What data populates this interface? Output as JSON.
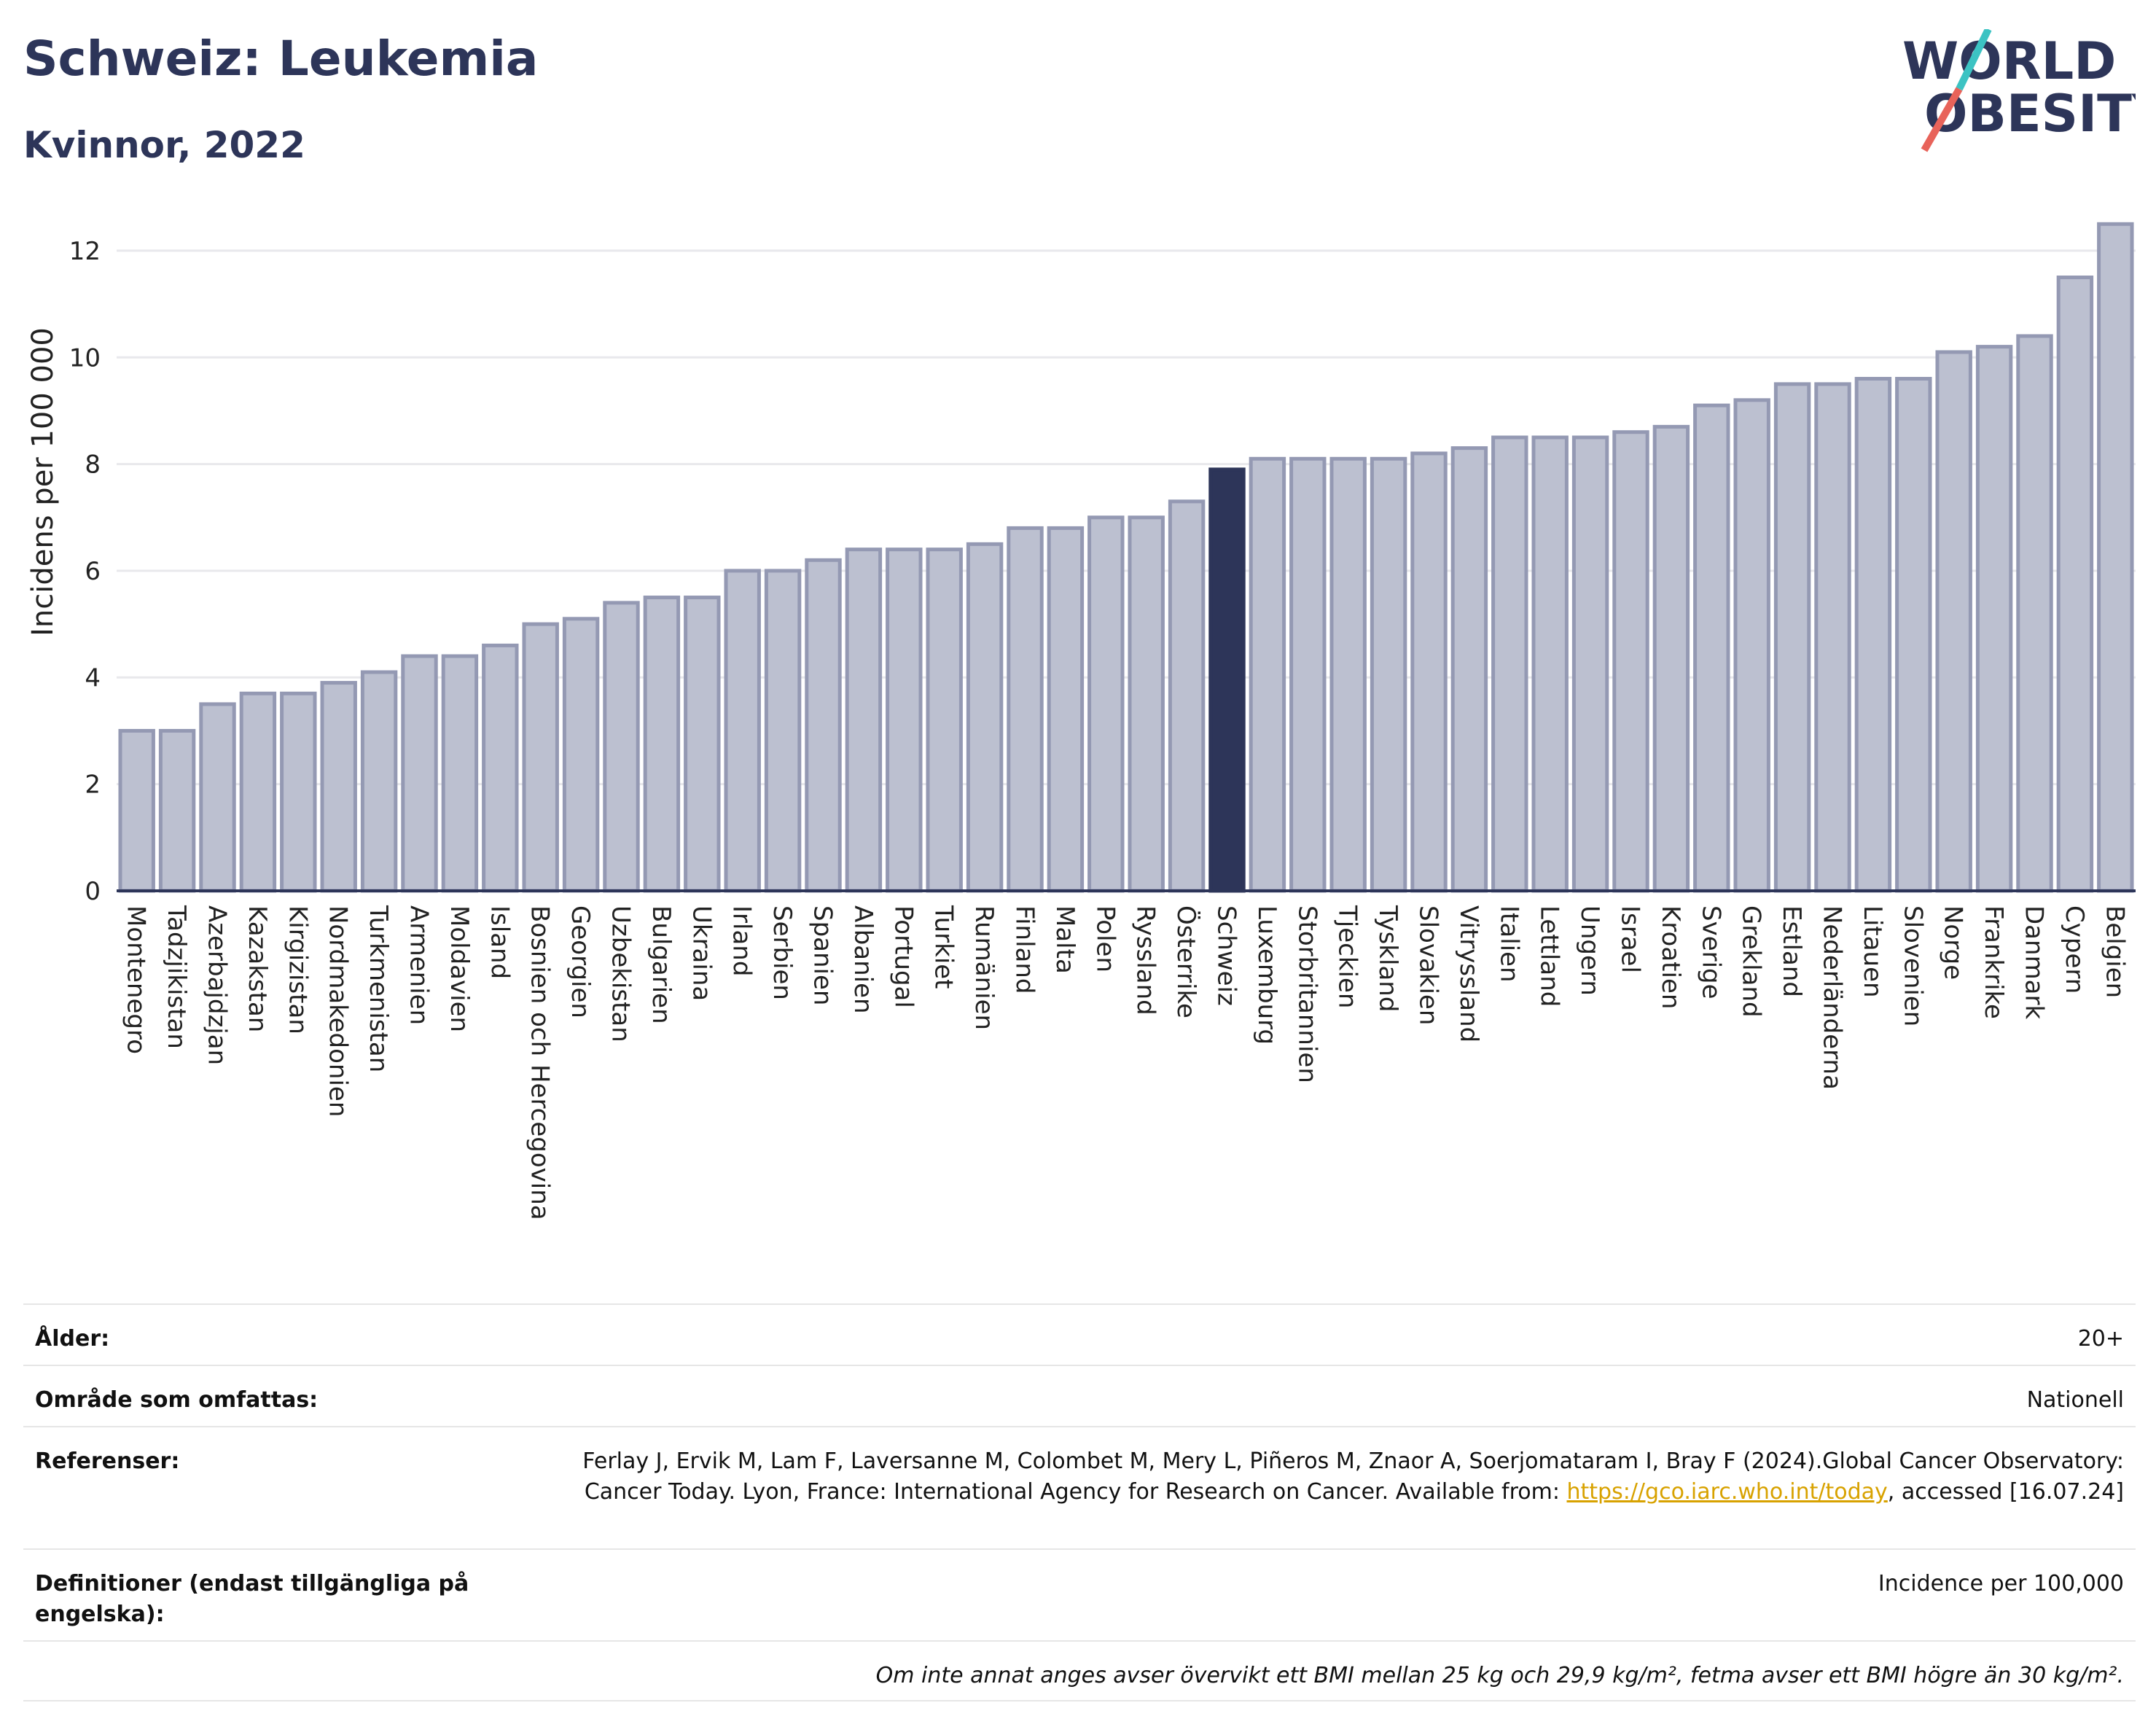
{
  "header": {
    "title": "Schweiz: Leukemia",
    "subtitle": "Kvinnor, 2022"
  },
  "logo": {
    "line1": "WORLD",
    "line2": "OBESITY",
    "accent_teal": "#3cc3c3",
    "accent_red": "#e8635a",
    "text_color": "#2d3559"
  },
  "chart_data": {
    "type": "bar",
    "ylabel": "Incidens per 100 000",
    "ylim": [
      0,
      12.6
    ],
    "yticks": [
      0,
      2,
      4,
      6,
      8,
      10,
      12
    ],
    "grid": true,
    "highlight": "Schweiz",
    "colors": {
      "bar": "#bcc0d0",
      "bar_edge": "#9499b3",
      "highlight": "#2d3559"
    },
    "categories": [
      "Montenegro",
      "Tadzjikistan",
      "Azerbajdzjan",
      "Kazakstan",
      "Kirgizistan",
      "Nordmakedonien",
      "Turkmenistan",
      "Armenien",
      "Moldavien",
      "Island",
      "Bosnien och Hercegovina",
      "Georgien",
      "Uzbekistan",
      "Bulgarien",
      "Ukraina",
      "Irland",
      "Serbien",
      "Spanien",
      "Albanien",
      "Portugal",
      "Turkiet",
      "Rumänien",
      "Finland",
      "Malta",
      "Polen",
      "Ryssland",
      "Österrike",
      "Schweiz",
      "Luxemburg",
      "Storbritannien",
      "Tjeckien",
      "Tyskland",
      "Slovakien",
      "Vitryssland",
      "Italien",
      "Lettland",
      "Ungern",
      "Israel",
      "Kroatien",
      "Sverige",
      "Grekland",
      "Estland",
      "Nederländerna",
      "Litauen",
      "Slovenien",
      "Norge",
      "Frankrike",
      "Danmark",
      "Cypern",
      "Belgien"
    ],
    "values": [
      3.0,
      3.0,
      3.5,
      3.7,
      3.7,
      3.9,
      4.1,
      4.4,
      4.4,
      4.6,
      5.0,
      5.1,
      5.4,
      5.5,
      5.5,
      6.0,
      6.0,
      6.2,
      6.4,
      6.4,
      6.4,
      6.5,
      6.8,
      6.8,
      7.0,
      7.0,
      7.3,
      7.9,
      8.1,
      8.1,
      8.1,
      8.1,
      8.2,
      8.3,
      8.5,
      8.5,
      8.5,
      8.6,
      8.7,
      9.1,
      9.2,
      9.5,
      9.5,
      9.6,
      9.6,
      10.1,
      10.2,
      10.4,
      11.5,
      12.5
    ]
  },
  "meta": {
    "age_label": "Ålder:",
    "age_value": "20+",
    "area_label": "Område som omfattas:",
    "area_value": "Nationell",
    "refs_label": "Referenser:",
    "refs_text": "Ferlay J, Ervik M, Lam F, Laversanne M, Colombet M, Mery L, Piñeros M, Znaor A, Soerjomataram I, Bray F (2024).Global Cancer Observatory: Cancer Today. Lyon, France: International Agency for Research on Cancer. Available from:",
    "refs_link": "https://gco.iarc.who.int/today",
    "refs_after": ", accessed [16.07.24]",
    "defs_label": "Definitioner (endast tillgängliga på engelska):",
    "defs_value": "Incidence per 100,000",
    "note": "Om inte annat anges avser övervikt ett BMI mellan 25 kg och 29,9 kg/m², fetma avser ett BMI högre än 30 kg/m²."
  }
}
